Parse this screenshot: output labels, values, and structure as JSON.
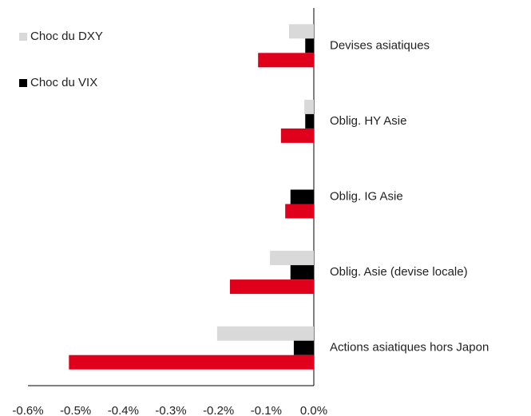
{
  "chart_data": {
    "type": "hbar",
    "categories": [
      "Devises asiatiques",
      "Oblig. HY Asie",
      "Oblig. IG Asie",
      "Oblig. Asie (devise locale)",
      "Actions asiatiques hors Japon"
    ],
    "series": [
      {
        "name": "Choc du DXY",
        "color": "#d9d9d9",
        "values": [
          -0.052,
          -0.02,
          0,
          -0.092,
          -0.203
        ]
      },
      {
        "name": "Choc du VIX",
        "color": "#000000",
        "values": [
          -0.018,
          -0.018,
          -0.049,
          -0.049,
          -0.042
        ]
      },
      {
        "color": "#e0001b",
        "values": [
          -0.117,
          -0.069,
          -0.06,
          -0.176,
          -0.514
        ]
      }
    ],
    "xlim": [
      -0.6,
      0
    ],
    "xticks": [
      {
        "value": -0.6,
        "label": "-0.6%"
      },
      {
        "value": -0.5,
        "label": "-0.5%"
      },
      {
        "value": -0.4,
        "label": "-0.4%"
      },
      {
        "value": -0.3,
        "label": "-0.3%"
      },
      {
        "value": -0.2,
        "label": "-0.2%"
      },
      {
        "value": -0.1,
        "label": "-0.1%"
      },
      {
        "value": 0,
        "label": "0.0%"
      }
    ],
    "grid": false,
    "legend": "top-left"
  }
}
